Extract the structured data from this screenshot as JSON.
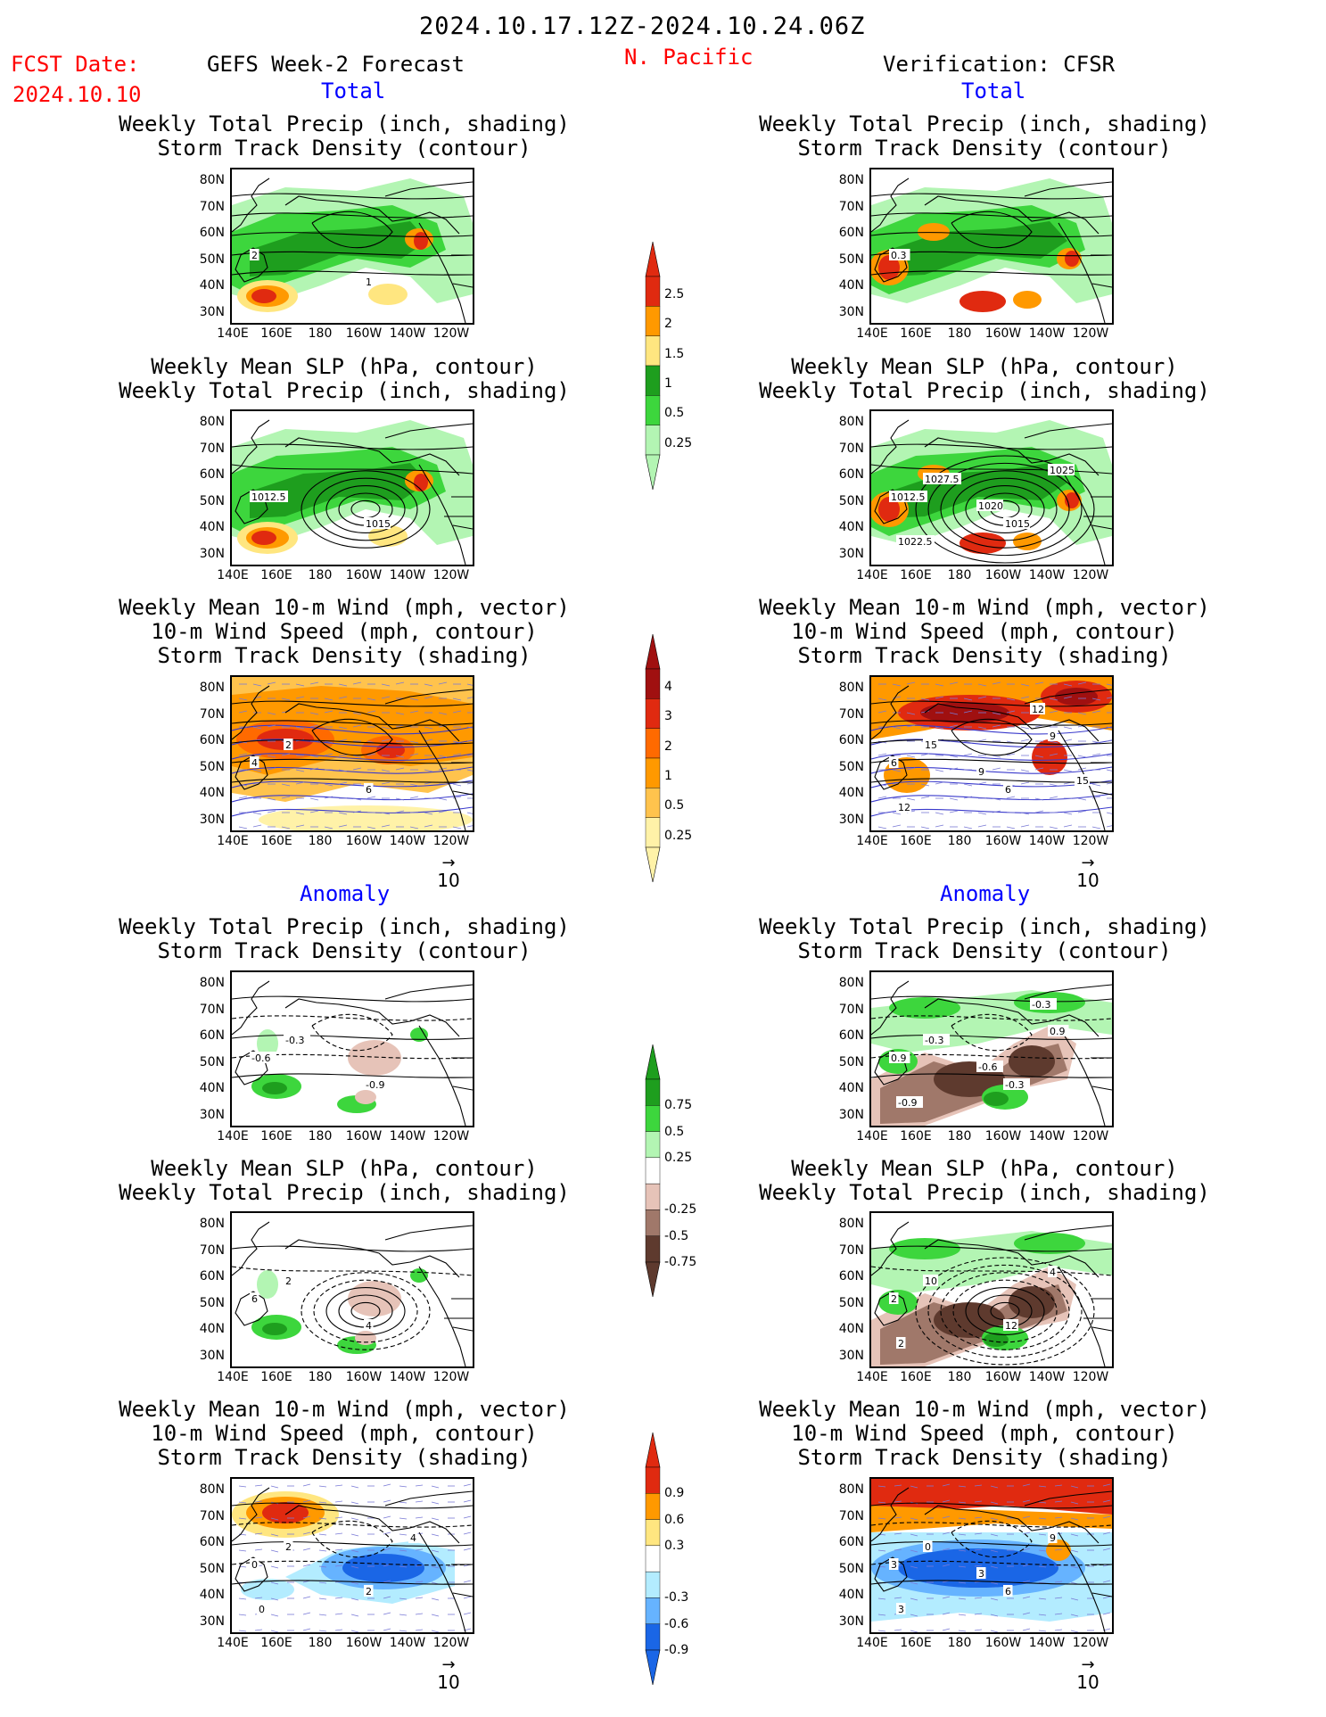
{
  "header": {
    "date_range": "2024.10.17.12Z-2024.10.24.06Z",
    "fcst_label": "FCST Date:",
    "fcst_date": "2024.10.10",
    "left_title": "GEFS Week-2 Forecast",
    "region": "N. Pacific",
    "right_title": "Verification: CFSR"
  },
  "sections": {
    "total": "Total",
    "anomaly": "Anomaly"
  },
  "panel_titles": {
    "precip_storm": [
      "Weekly Total Precip (inch, shading)",
      "Storm Track Density (contour)"
    ],
    "slp_precip": [
      "Weekly Mean SLP (hPa, contour)",
      "Weekly Total Precip (inch, shading)"
    ],
    "wind_storm": [
      "Weekly Mean 10-m Wind (mph, vector)",
      "10-m Wind Speed (mph, contour)",
      "Storm Track Density (shading)"
    ]
  },
  "axes": {
    "lat": [
      "80N",
      "70N",
      "60N",
      "50N",
      "40N",
      "30N"
    ],
    "lon": [
      "140E",
      "160E",
      "180",
      "160W",
      "140W",
      "120W"
    ]
  },
  "vector_ref": "10",
  "colorbars": {
    "precip_total": {
      "labels": [
        "2.5",
        "2",
        "1.5",
        "1",
        "0.5",
        "0.25"
      ],
      "colors": [
        "#e02a10",
        "#ff9900",
        "#ffe680",
        "#1e9e1e",
        "#3dd63d",
        "#b3f5b3"
      ]
    },
    "storm_total": {
      "labels": [
        "4",
        "3",
        "2",
        "1",
        "0.5",
        "0.25"
      ],
      "colors": [
        "#a01010",
        "#e02a10",
        "#ff6a00",
        "#ff9900",
        "#ffc34d",
        "#fff2a8"
      ]
    },
    "precip_anom": {
      "labels": [
        "0.75",
        "0.5",
        "0.25",
        "-0.25",
        "-0.5",
        "-0.75"
      ],
      "colors": [
        "#1e9e1e",
        "#3dd63d",
        "#b3f5b3",
        "#ffffff",
        "#e6c3b8",
        "#a0786a",
        "#5e3a2e"
      ]
    },
    "storm_anom": {
      "labels": [
        "0.9",
        "0.6",
        "0.3",
        "-0.3",
        "-0.6",
        "-0.9"
      ],
      "colors": [
        "#e02a10",
        "#ff9900",
        "#ffe680",
        "#ffffff",
        "#b3ecff",
        "#66b3ff",
        "#1a66e6"
      ]
    }
  },
  "panel_labels": {
    "fp1": [
      "2",
      "1"
    ],
    "vp1": [
      "0.3"
    ],
    "fp2": [
      "1012.5",
      "1015"
    ],
    "vp2": [
      "1012.5",
      "1015",
      "1027.5",
      "1025",
      "1022.5",
      "1020"
    ],
    "fp3": [
      "4",
      "6",
      "2"
    ],
    "vp3": [
      "6",
      "6",
      "15",
      "9",
      "12",
      "9",
      "12",
      "15"
    ],
    "fp4": [
      "-0.6",
      "-0.9",
      "-0.3"
    ],
    "vp4": [
      "0.9",
      "-0.3",
      "-0.3",
      "0.9",
      "-0.9",
      "-0.6",
      "-0.3"
    ],
    "fp5": [
      "6",
      "4",
      "2"
    ],
    "vp5": [
      "2",
      "12",
      "10",
      "4",
      "2"
    ],
    "fp6": [
      "0",
      "2",
      "2",
      "4",
      "0"
    ],
    "vp6": [
      "3",
      "6",
      "0",
      "9",
      "3",
      "3"
    ]
  }
}
